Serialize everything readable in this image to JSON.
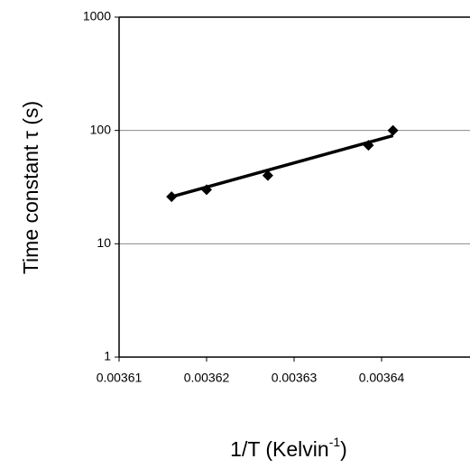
{
  "chart_data": {
    "type": "scatter",
    "ylabel": "Time constant τ (s)",
    "xlabel": {
      "text": "1/T (Kelvin",
      "superscript": "-1",
      "suffix": ")"
    },
    "x": [
      0.003616,
      0.00362,
      0.003627,
      0.0036385,
      0.0036413
    ],
    "values": [
      26,
      30,
      40,
      74,
      100
    ],
    "color": "#000000",
    "trendline": {
      "x": [
        0.003616,
        0.0036413
      ],
      "values": [
        26,
        90
      ],
      "color": "#000000"
    },
    "xlim": [
      0.00361,
      0.00365
    ],
    "xticks": [
      0.00361,
      0.00362,
      0.00363,
      0.00364
    ],
    "ylim": [
      1,
      1000
    ],
    "yticks": [
      1,
      10,
      100,
      1000
    ],
    "log_y": true,
    "grid": true
  }
}
